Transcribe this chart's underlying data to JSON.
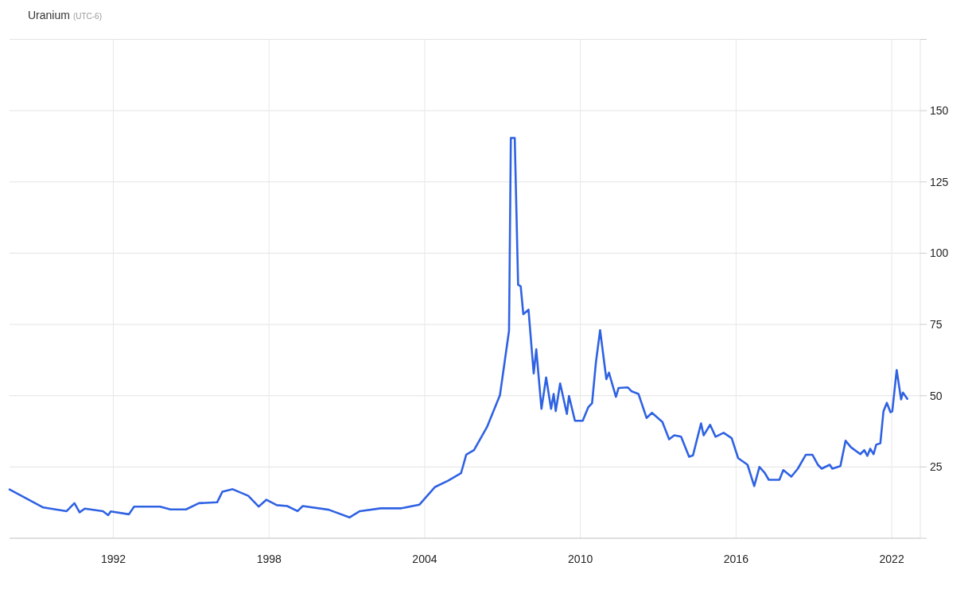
{
  "chart_data": {
    "type": "line",
    "title": "Uranium",
    "subtitle": "(UTC-6)",
    "x": [
      1988.0,
      1988.7,
      1989.3,
      1990.2,
      1990.5,
      1990.7,
      1990.9,
      1991.6,
      1991.8,
      1991.9,
      1992.6,
      1992.8,
      1993.8,
      1994.2,
      1994.8,
      1995.3,
      1996.0,
      1996.2,
      1996.6,
      1997.2,
      1997.6,
      1997.9,
      1998.3,
      1998.7,
      1999.1,
      1999.3,
      2000.3,
      2001.1,
      2001.5,
      2002.3,
      2003.1,
      2003.8,
      2004.4,
      2004.9,
      2005.4,
      2005.6,
      2005.9,
      2006.4,
      2006.9,
      2007.1,
      2007.25,
      2007.32,
      2007.47,
      2007.6,
      2007.7,
      2007.8,
      2008.0,
      2008.2,
      2008.3,
      2008.5,
      2008.68,
      2008.87,
      2008.97,
      2009.05,
      2009.22,
      2009.48,
      2009.56,
      2009.79,
      2010.09,
      2010.3,
      2010.45,
      2010.6,
      2010.76,
      2011.0,
      2011.1,
      2011.37,
      2011.47,
      2011.83,
      2011.98,
      2012.24,
      2012.55,
      2012.76,
      2013.16,
      2013.42,
      2013.62,
      2013.88,
      2014.19,
      2014.34,
      2014.65,
      2014.75,
      2015.0,
      2015.21,
      2015.52,
      2015.83,
      2016.08,
      2016.44,
      2016.7,
      2016.9,
      2017.1,
      2017.26,
      2017.67,
      2017.82,
      2018.13,
      2018.38,
      2018.69,
      2018.94,
      2019.15,
      2019.3,
      2019.61,
      2019.71,
      2020.02,
      2020.22,
      2020.43,
      2020.79,
      2020.94,
      2021.06,
      2021.17,
      2021.3,
      2021.4,
      2021.56,
      2021.68,
      2021.81,
      2021.95,
      2022.02,
      2022.19,
      2022.36,
      2022.43,
      2022.6
    ],
    "series": [
      {
        "color": "#2f62e3",
        "values": [
          17.1,
          13.7,
          10.8,
          9.5,
          12.3,
          9.1,
          10.4,
          9.5,
          8.1,
          9.4,
          8.4,
          11.1,
          11.1,
          10.1,
          10.1,
          12.3,
          12.6,
          16.3,
          17.2,
          14.9,
          11.1,
          13.5,
          11.6,
          11.3,
          9.5,
          11.3,
          10.0,
          7.3,
          9.5,
          10.5,
          10.5,
          11.8,
          18.0,
          20.2,
          22.8,
          29.3,
          30.9,
          39.0,
          50.2,
          63.1,
          72.8,
          140.4,
          140.4,
          88.9,
          88.4,
          78.6,
          80.2,
          57.8,
          66.3,
          45.4,
          56.4,
          45.4,
          50.6,
          44.6,
          54.3,
          43.6,
          49.9,
          41.2,
          41.2,
          45.9,
          47.4,
          61.8,
          73.0,
          55.8,
          58.1,
          49.6,
          52.7,
          52.9,
          51.5,
          50.6,
          42.2,
          44.0,
          40.8,
          34.7,
          36.1,
          35.6,
          28.6,
          29.1,
          40.3,
          36.1,
          39.8,
          35.6,
          37.0,
          35.1,
          28.1,
          25.8,
          18.3,
          25.0,
          23.0,
          20.5,
          20.5,
          23.9,
          21.6,
          24.4,
          29.3,
          29.3,
          25.8,
          24.4,
          25.8,
          24.4,
          25.3,
          34.2,
          31.9,
          29.5,
          30.9,
          28.9,
          31.4,
          29.5,
          32.8,
          33.3,
          44.5,
          47.5,
          44.2,
          44.5,
          59.0,
          48.7,
          51.1,
          48.9
        ]
      }
    ],
    "xlim": [
      1988,
      2023.1
    ],
    "xticks": [
      1992,
      1998,
      2004,
      2010,
      2016,
      2022
    ],
    "ylim": [
      0,
      175
    ],
    "yticks": [
      {
        "value": 0,
        "label": null
      },
      25,
      50,
      75,
      100,
      125,
      150,
      {
        "value": 175,
        "label": null
      }
    ],
    "grid": true,
    "line_style": "solid",
    "marker": "none"
  }
}
